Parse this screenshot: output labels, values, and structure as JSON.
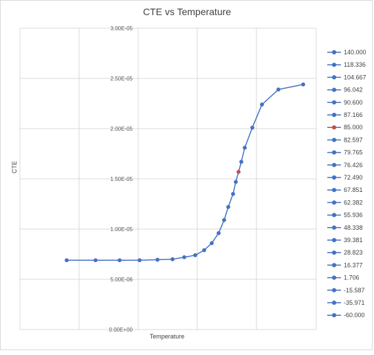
{
  "chart_data": {
    "type": "scatter",
    "title": "CTE vs Temperature",
    "xlabel": "Temperature",
    "ylabel": "CTE",
    "ylim": [
      0,
      3e-05
    ],
    "y_ticks": [
      "0.00E+00",
      "5.00E-06",
      "1.00E-05",
      "1.50E-05",
      "2.00E-05",
      "2.50E-05",
      "3.00E-05"
    ],
    "grid": true,
    "legend_position": "right",
    "color_default": "#4472C4",
    "color_highlight": "#C0504D",
    "series": [
      {
        "name": "-60.000",
        "x": -60.0,
        "y": 6.9e-06
      },
      {
        "name": "-35.971",
        "x": -35.971,
        "y": 6.9e-06
      },
      {
        "name": "-15.587",
        "x": -15.587,
        "y": 6.9e-06
      },
      {
        "name": "1.706",
        "x": 1.706,
        "y": 6.9e-06
      },
      {
        "name": "16.377",
        "x": 16.377,
        "y": 6.95e-06
      },
      {
        "name": "28.823",
        "x": 28.823,
        "y": 7e-06
      },
      {
        "name": "39.381",
        "x": 39.381,
        "y": 7.2e-06
      },
      {
        "name": "48.338",
        "x": 48.338,
        "y": 7.4e-06
      },
      {
        "name": "55.936",
        "x": 55.936,
        "y": 7.9e-06
      },
      {
        "name": "62.382",
        "x": 62.382,
        "y": 8.6e-06
      },
      {
        "name": "67.851",
        "x": 67.851,
        "y": 9.6e-06
      },
      {
        "name": "72.490",
        "x": 72.49,
        "y": 1.09e-05
      },
      {
        "name": "76.426",
        "x": 76.426,
        "y": 1.22e-05
      },
      {
        "name": "79.765",
        "x": 79.765,
        "y": 1.35e-05
      },
      {
        "name": "82.597",
        "x": 82.597,
        "y": 1.47e-05
      },
      {
        "name": "85.000",
        "x": 85.0,
        "y": 1.57e-05,
        "highlight": true
      },
      {
        "name": "87.166",
        "x": 87.166,
        "y": 1.67e-05
      },
      {
        "name": "90.600",
        "x": 90.6,
        "y": 1.81e-05
      },
      {
        "name": "96.042",
        "x": 96.042,
        "y": 2.01e-05
      },
      {
        "name": "104.667",
        "x": 104.667,
        "y": 2.24e-05
      },
      {
        "name": "118.336",
        "x": 118.336,
        "y": 2.39e-05
      },
      {
        "name": "140.000",
        "x": 140.0,
        "y": 2.44e-05
      }
    ]
  }
}
